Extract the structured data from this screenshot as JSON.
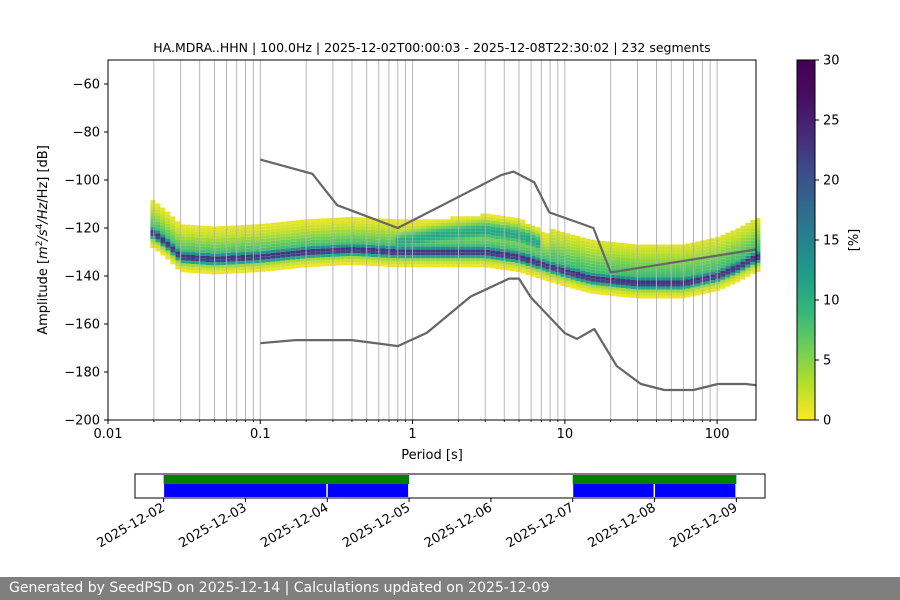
{
  "chart_data": [
    {
      "type": "heatmap",
      "title": "HA.MDRA..HHN | 100.0Hz | 2025-12-02T00:00:03 - 2025-12-08T22:30:02 | 232 segments",
      "xlabel": "Period [s]",
      "ylabel_prefix": "Amplitude [",
      "ylabel_unit_m": "m",
      "ylabel_exp_2": "2",
      "ylabel_unit_s": "/s",
      "ylabel_exp_4": "4",
      "ylabel_suffix": "/Hz] [dB]",
      "x_scale": "log",
      "xlim": [
        0.01,
        180
      ],
      "ylim": [
        -200,
        -50
      ],
      "grid": "x-major-and-minor",
      "x_ticks": [
        {
          "value": 0.01,
          "label": "0.01"
        },
        {
          "value": 0.1,
          "label": "0.1"
        },
        {
          "value": 1,
          "label": "1"
        },
        {
          "value": 10,
          "label": "10"
        },
        {
          "value": 100,
          "label": "100"
        }
      ],
      "y_ticks": [
        {
          "value": -60,
          "label": "−60"
        },
        {
          "value": -80,
          "label": "−80"
        },
        {
          "value": -100,
          "label": "−100"
        },
        {
          "value": -120,
          "label": "−120"
        },
        {
          "value": -140,
          "label": "−140"
        },
        {
          "value": -160,
          "label": "−160"
        },
        {
          "value": -180,
          "label": "−180"
        },
        {
          "value": -200,
          "label": "−200"
        }
      ],
      "colorbar": {
        "label": "[%]",
        "range": [
          0,
          30
        ],
        "colormap": "viridis_r",
        "ticks": [
          {
            "value": 0,
            "label": "0"
          },
          {
            "value": 5,
            "label": "5"
          },
          {
            "value": 10,
            "label": "10"
          },
          {
            "value": 15,
            "label": "15"
          },
          {
            "value": 20,
            "label": "20"
          },
          {
            "value": 25,
            "label": "25"
          },
          {
            "value": 30,
            "label": "30"
          }
        ]
      },
      "mode_ridge": [
        {
          "period": 0.02,
          "db": -122
        },
        {
          "period": 0.025,
          "db": -127
        },
        {
          "period": 0.03,
          "db": -132
        },
        {
          "period": 0.05,
          "db": -133
        },
        {
          "period": 0.1,
          "db": -132
        },
        {
          "period": 0.2,
          "db": -130
        },
        {
          "period": 0.4,
          "db": -129
        },
        {
          "period": 0.8,
          "db": -130
        },
        {
          "period": 1.5,
          "db": -130
        },
        {
          "period": 3,
          "db": -130
        },
        {
          "period": 5,
          "db": -132
        },
        {
          "period": 7,
          "db": -135
        },
        {
          "period": 10,
          "db": -138
        },
        {
          "period": 15,
          "db": -141
        },
        {
          "period": 30,
          "db": -143
        },
        {
          "period": 60,
          "db": -143
        },
        {
          "period": 100,
          "db": -140
        },
        {
          "period": 140,
          "db": -136
        },
        {
          "period": 180,
          "db": -132
        }
      ],
      "secondary_ridge": [
        {
          "period": 0.8,
          "db": -126
        },
        {
          "period": 1.5,
          "db": -123
        },
        {
          "period": 3,
          "db": -121
        },
        {
          "period": 5,
          "db": -123
        },
        {
          "period": 7,
          "db": -127
        }
      ],
      "nhnm": {
        "name": "NHNM",
        "period": [
          0.1,
          0.22,
          0.32,
          0.8,
          3.8,
          4.6,
          6.3,
          7.9,
          15.4,
          20,
          354.8
        ],
        "db": [
          -91.5,
          -97.4,
          -110.5,
          -120,
          -98,
          -96.5,
          -101,
          -113.5,
          -120,
          -138.5,
          -126
        ]
      },
      "nlnm": {
        "name": "NLNM",
        "period": [
          0.1,
          0.17,
          0.4,
          0.8,
          1.24,
          2.4,
          4.3,
          5,
          6,
          10,
          12,
          15.6,
          21.9,
          31.6,
          45,
          70,
          101,
          154,
          180
        ],
        "db": [
          -168,
          -166.7,
          -166.7,
          -169.2,
          -163.7,
          -148.6,
          -141.1,
          -141.1,
          -149,
          -163.8,
          -166.2,
          -162.1,
          -177.5,
          -185,
          -187.5,
          -187.5,
          -185,
          -185,
          -185.5
        ]
      }
    },
    {
      "type": "timeline",
      "x_ticks": [
        "2025-12-02",
        "2025-12-03",
        "2025-12-04",
        "2025-12-05",
        "2025-12-06",
        "2025-12-07",
        "2025-12-08",
        "2025-12-09"
      ],
      "xlim_days": [
        -0.35,
        7.35
      ],
      "data_available": [
        [
          0,
          3
        ],
        [
          5,
          7
        ]
      ],
      "psd_segments": [
        [
          0,
          2
        ],
        [
          2,
          3
        ],
        [
          5,
          6
        ],
        [
          6,
          7
        ]
      ],
      "colors": {
        "data_available": "#008000",
        "psd_segments": "#0000ff"
      }
    }
  ],
  "footer": {
    "text": "Generated by SeedPSD on 2025-12-14 | Calculations updated on 2025-12-09"
  }
}
